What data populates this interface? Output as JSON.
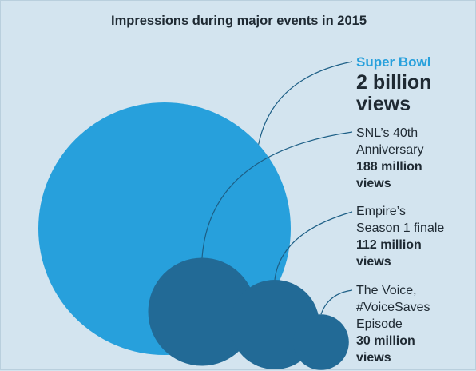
{
  "chart_data": {
    "type": "bubble",
    "title": "Impressions during major events in 2015",
    "series": [
      {
        "name": "Super Bowl",
        "value_label": "2 billion views",
        "value": 2000000000,
        "color": "#27a0dc"
      },
      {
        "name": "SNL’s 40th Anniversary",
        "value_label": "188 million views",
        "value": 188000000,
        "color": "#226a96"
      },
      {
        "name": "Empire’s Season 1 finale",
        "value_label": "112 million views",
        "value": 112000000,
        "color": "#226a96"
      },
      {
        "name": "The Voice, #VoiceSaves Episode",
        "value_label": "30 million views",
        "value": 30000000,
        "color": "#226a96"
      }
    ]
  }
}
